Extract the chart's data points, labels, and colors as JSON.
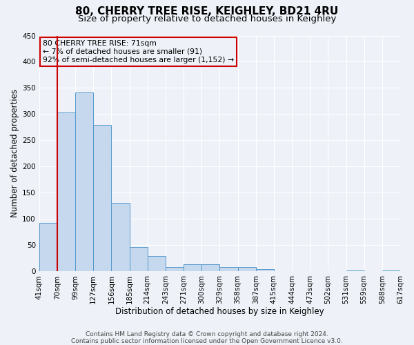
{
  "title": "80, CHERRY TREE RISE, KEIGHLEY, BD21 4RU",
  "subtitle": "Size of property relative to detached houses in Keighley",
  "xlabel": "Distribution of detached houses by size in Keighley",
  "ylabel": "Number of detached properties",
  "bin_labels": [
    "41sqm",
    "70sqm",
    "99sqm",
    "127sqm",
    "156sqm",
    "185sqm",
    "214sqm",
    "243sqm",
    "271sqm",
    "300sqm",
    "329sqm",
    "358sqm",
    "387sqm",
    "415sqm",
    "444sqm",
    "473sqm",
    "502sqm",
    "531sqm",
    "559sqm",
    "588sqm",
    "617sqm"
  ],
  "bar_heights": [
    92,
    303,
    342,
    279,
    131,
    47,
    30,
    8,
    13,
    13,
    8,
    9,
    4,
    1,
    0,
    1,
    0,
    2,
    0,
    2
  ],
  "bar_color": "#c5d8ed",
  "bar_edge_color": "#5599cc",
  "ylim": [
    0,
    450
  ],
  "yticks": [
    0,
    50,
    100,
    150,
    200,
    250,
    300,
    350,
    400,
    450
  ],
  "vline_index": 1,
  "vline_color": "#cc0000",
  "annotation_lines": [
    "80 CHERRY TREE RISE: 71sqm",
    "← 7% of detached houses are smaller (91)",
    "92% of semi-detached houses are larger (1,152) →"
  ],
  "annotation_box_color": "#cc0000",
  "footer_lines": [
    "Contains HM Land Registry data © Crown copyright and database right 2024.",
    "Contains public sector information licensed under the Open Government Licence v3.0."
  ],
  "background_color": "#eef2f8",
  "grid_color": "#ffffff",
  "title_fontsize": 11,
  "subtitle_fontsize": 9.5,
  "axis_label_fontsize": 8.5,
  "tick_fontsize": 7.5,
  "footer_fontsize": 6.5
}
